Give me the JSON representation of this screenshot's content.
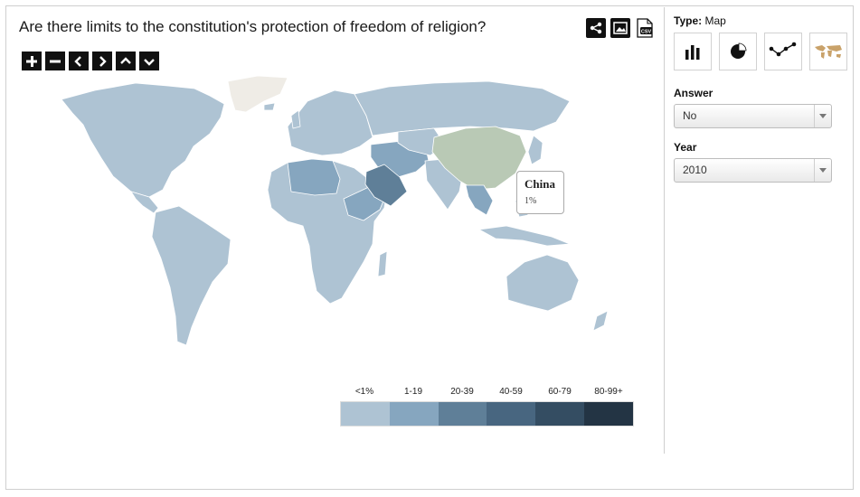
{
  "title": "Are there limits to the constitution's protection of freedom of religion?",
  "toolbar": {
    "share_icon": "share-icon",
    "image_icon": "image-icon",
    "csv_icon": "csv-icon",
    "csv_label": "CSV"
  },
  "zoom_controls": [
    "zoom-in-icon",
    "zoom-out-icon",
    "pan-left-icon",
    "pan-right-icon",
    "pan-up-icon",
    "pan-down-icon"
  ],
  "map": {
    "highlighted_country": "China",
    "highlighted_color": "#b9c9b5",
    "tooltip": {
      "country": "China",
      "value": "1%"
    }
  },
  "legend": {
    "labels": [
      "<1%",
      "1-19",
      "20-39",
      "40-59",
      "60-79",
      "80-99+"
    ],
    "colors": [
      "#aec3d3",
      "#86a6bf",
      "#5f7f98",
      "#486680",
      "#344d62",
      "#233444"
    ]
  },
  "panel": {
    "type_label": "Type:",
    "type_value": "Map",
    "type_buttons": [
      "bar-chart-icon",
      "pie-chart-icon",
      "line-chart-icon",
      "world-map-icon"
    ],
    "answer_label": "Answer",
    "answer_value": "No",
    "year_label": "Year",
    "year_value": "2010"
  },
  "colors": {
    "base_land": "#aec3d3",
    "greenland": "#efece6",
    "accent": "#233444"
  }
}
